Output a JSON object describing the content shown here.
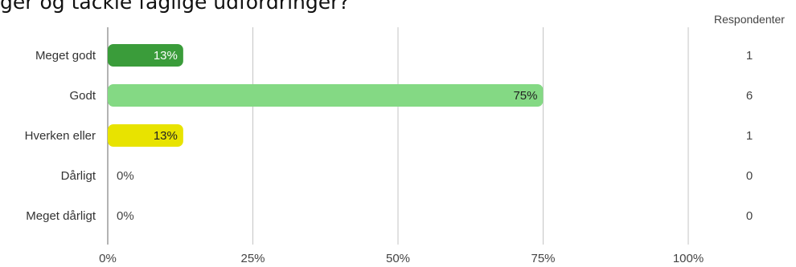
{
  "question": {
    "title_fragment": "ger og tackle faglige udfordringer?"
  },
  "chart_data": {
    "type": "bar",
    "orientation": "horizontal",
    "categories": [
      "Meget godt",
      "Godt",
      "Hverken eller",
      "Dårligt",
      "Meget dårligt"
    ],
    "values": [
      13,
      75,
      13,
      0,
      0
    ],
    "value_labels": [
      "13%",
      "75%",
      "13%",
      "0%",
      "0%"
    ],
    "respondents": [
      1,
      6,
      1,
      0,
      0
    ],
    "respondents_header": "Respondenter",
    "bar_colors": [
      "#3a9c3a",
      "#84d984",
      "#e8e300",
      "#cccccc",
      "#cccccc"
    ],
    "label_colors": [
      "#ffffff",
      "#222222",
      "#222222",
      "#444444",
      "#444444"
    ],
    "xlim": [
      0,
      100
    ],
    "xticks": [
      0,
      25,
      50,
      75,
      100
    ],
    "xtick_labels": [
      "0%",
      "25%",
      "50%",
      "75%",
      "100%"
    ],
    "grid": true,
    "xlabel": "",
    "ylabel": ""
  }
}
